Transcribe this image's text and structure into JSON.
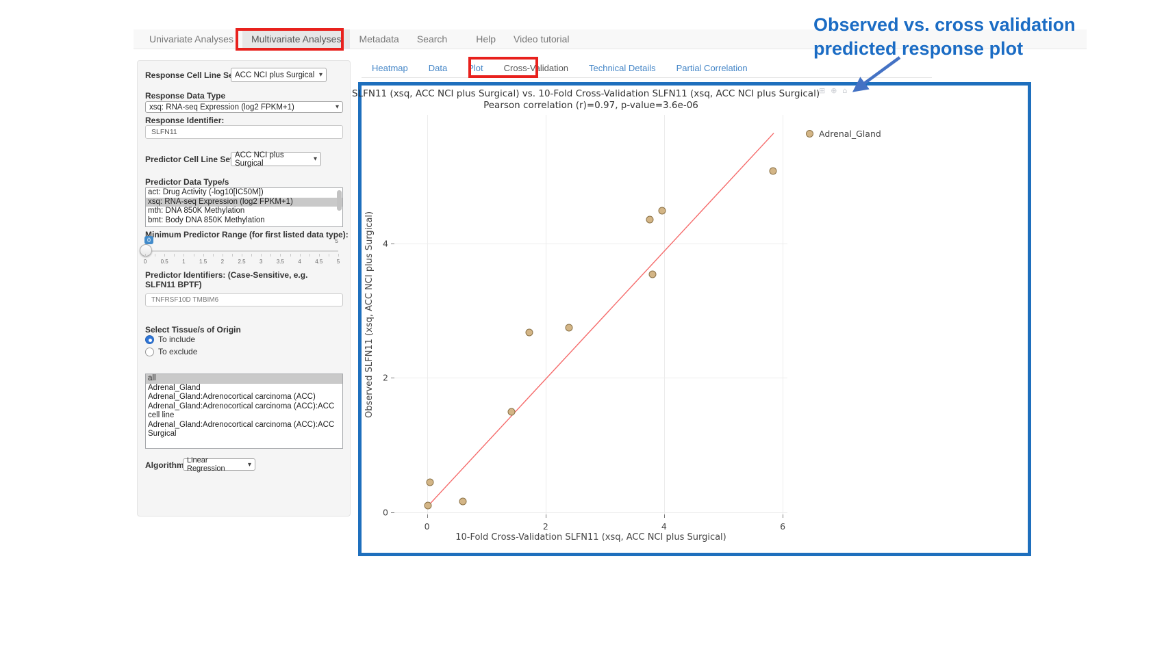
{
  "nav": {
    "items": [
      {
        "label": "Univariate Analyses",
        "active": false
      },
      {
        "label": "Multivariate Analyses",
        "active": true,
        "highlighted": true
      },
      {
        "label": "Metadata",
        "active": false
      },
      {
        "label": "Search",
        "active": false
      },
      {
        "label": "Help",
        "active": false,
        "gap": true
      },
      {
        "label": "Video tutorial",
        "active": false
      }
    ]
  },
  "sidebar": {
    "response_cell_line_set": {
      "label": "Response Cell Line Set",
      "value": "ACC NCI plus Surgical"
    },
    "response_data_type": {
      "label": "Response Data Type",
      "value": "xsq: RNA-seq Expression (log2 FPKM+1)"
    },
    "response_identifier": {
      "label": "Response Identifier:",
      "value": "SLFN11"
    },
    "predictor_cell_line_set": {
      "label": "Predictor Cell Line Set",
      "value": "ACC NCI plus Surgical"
    },
    "predictor_data_types": {
      "label": "Predictor Data Type/s",
      "options": [
        "act: Drug Activity (-log10[IC50M])",
        "xsq: RNA-seq Expression (log2 FPKM+1)",
        "mth: DNA 850K Methylation",
        "bmt: Body DNA 850K Methylation"
      ],
      "selected_index": 1
    },
    "min_predictor_range": {
      "label": "Minimum Predictor Range (for first listed data type):",
      "value": "0",
      "max_label": "5",
      "tick_labels": [
        "0",
        "0.5",
        "1",
        "1.5",
        "2",
        "2.5",
        "3",
        "3.5",
        "4",
        "4.5",
        "5"
      ]
    },
    "predictor_identifiers": {
      "label": "Predictor Identifiers: (Case-Sensitive, e.g. SLFN11 BPTF)",
      "value": "TNFRSF10D TMBIM6"
    },
    "tissue_origin": {
      "label": "Select Tissue/s of Origin",
      "include_label": "To include",
      "exclude_label": "To exclude",
      "mode": "include",
      "options": [
        "all",
        "Adrenal_Gland",
        "Adrenal_Gland:Adrenocortical carcinoma (ACC)",
        "Adrenal_Gland:Adrenocortical carcinoma (ACC):ACC cell line",
        "Adrenal_Gland:Adrenocortical carcinoma (ACC):ACC Surgical"
      ],
      "selected_index": 0
    },
    "algorithm": {
      "label": "Algorithm",
      "value": "Linear Regression"
    }
  },
  "tabs": {
    "items": [
      {
        "label": "Heatmap",
        "active": false
      },
      {
        "label": "Data",
        "active": false
      },
      {
        "label": "Plot",
        "active": false
      },
      {
        "label": "Cross-Validation",
        "active": true,
        "highlighted": true
      },
      {
        "label": "Technical Details",
        "active": false
      },
      {
        "label": "Partial Correlation",
        "active": false
      }
    ]
  },
  "annotation": {
    "line1": "Observed vs. cross validation",
    "line2": "predicted response plot",
    "color": "#1b6cc4"
  },
  "modebar": {
    "icons": [
      "camera-icon",
      "zoom-icon",
      "home-icon"
    ]
  },
  "colors": {
    "plot_border": "#1e6fbd",
    "highlight_red": "#e8211d",
    "annotation_blue": "#1b6cc4",
    "arrow_blue": "#4472c4",
    "tab_link": "#4385c7",
    "marker_fill": "#d3b586",
    "marker_border": "#8a7146",
    "trend_line": "#f56a6a"
  },
  "chart_data": {
    "type": "scatter",
    "title": "SLFN11 (xsq, ACC NCI plus Surgical) vs. 10-Fold Cross-Validation SLFN11 (xsq, ACC NCI plus Surgical)",
    "subtitle": "Pearson correlation (r)=0.97, p-value=3.6e-06",
    "xlabel": "10-Fold Cross-Validation SLFN11 (xsq, ACC NCI plus Surgical)",
    "ylabel": "Observed SLFN11 (xsq, ACC NCI plus Surgical)",
    "xlim": [
      -0.55,
      6.08
    ],
    "ylim": [
      -0.03,
      5.91
    ],
    "xticks": [
      0,
      2,
      4,
      6
    ],
    "yticks": [
      0,
      2,
      4
    ],
    "grid": true,
    "legend_position": "right-top",
    "series": [
      {
        "name": "Adrenal_Gland",
        "marker_color": "#d3b586",
        "marker_border": "#8a7146",
        "points": [
          [
            0.02,
            0.1
          ],
          [
            0.05,
            0.45
          ],
          [
            0.6,
            0.16
          ],
          [
            1.42,
            1.5
          ],
          [
            1.72,
            2.68
          ],
          [
            2.4,
            2.75
          ],
          [
            3.8,
            3.54
          ],
          [
            3.76,
            4.35
          ],
          [
            3.97,
            4.49
          ],
          [
            5.84,
            5.08
          ]
        ]
      }
    ],
    "regression_line": {
      "color": "#f56a6a",
      "x1": 0.0,
      "y1": 0.08,
      "x2": 5.85,
      "y2": 5.64
    },
    "stats": {
      "pearson_r": 0.97,
      "p_value": "3.6e-06"
    }
  }
}
